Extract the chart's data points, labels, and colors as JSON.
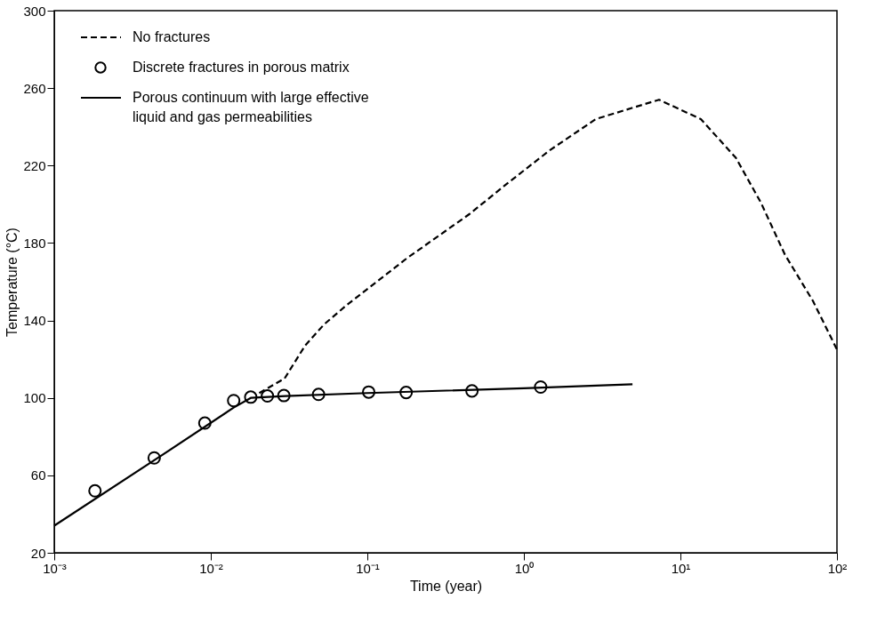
{
  "chart_data": {
    "type": "line",
    "xlabel": "Time (year)",
    "ylabel": "Temperature (°C)",
    "log": "x",
    "xlim": [
      0.001,
      100
    ],
    "ylim": [
      20,
      300
    ],
    "xticks": [
      {
        "value": 0.001,
        "label": "10⁻³"
      },
      {
        "value": 0.01,
        "label": "10⁻²"
      },
      {
        "value": 0.1,
        "label": "10⁻¹"
      },
      {
        "value": 1,
        "label": "10⁰"
      },
      {
        "value": 10,
        "label": "10¹"
      },
      {
        "value": 100,
        "label": "10²"
      }
    ],
    "yticks": [
      20,
      60,
      100,
      140,
      180,
      220,
      260,
      300
    ],
    "grid": false,
    "legend": "top left",
    "series": [
      {
        "name": "No fractures",
        "type": "line",
        "line_style": "dashed",
        "color": "#000000",
        "x": [
          0.018,
          0.0296,
          0.04,
          0.053,
          0.074,
          0.178,
          0.45,
          0.79,
          1.47,
          2.88,
          7.3,
          13.5,
          22.6,
          32.6,
          46.5,
          70.3,
          100
        ],
        "values": [
          100,
          110,
          127,
          138,
          148,
          172,
          195,
          211,
          228,
          244,
          254,
          244,
          224,
          201,
          174,
          150,
          125
        ]
      },
      {
        "name": "Discrete fractures in porous matrix",
        "type": "scatter",
        "marker": "circle",
        "color": "#000000",
        "x": [
          0.00182,
          0.00435,
          0.00916,
          0.014,
          0.018,
          0.023,
          0.0293,
          0.0488,
          0.102,
          0.177,
          0.466,
          1.28
        ],
        "values": [
          52,
          69,
          87,
          98.6,
          100.4,
          101,
          101.2,
          101.8,
          103,
          102.8,
          103.6,
          105.6
        ]
      },
      {
        "name": "Porous continuum with large effective\n  liquid and gas permeabilities",
        "type": "line",
        "line_style": "solid",
        "color": "#000000",
        "x": [
          0.001,
          0.005,
          0.014,
          0.018,
          0.03,
          0.1,
          1,
          4.94
        ],
        "values": [
          34,
          71,
          95,
          100,
          101,
          102.5,
          105,
          107
        ]
      }
    ]
  }
}
